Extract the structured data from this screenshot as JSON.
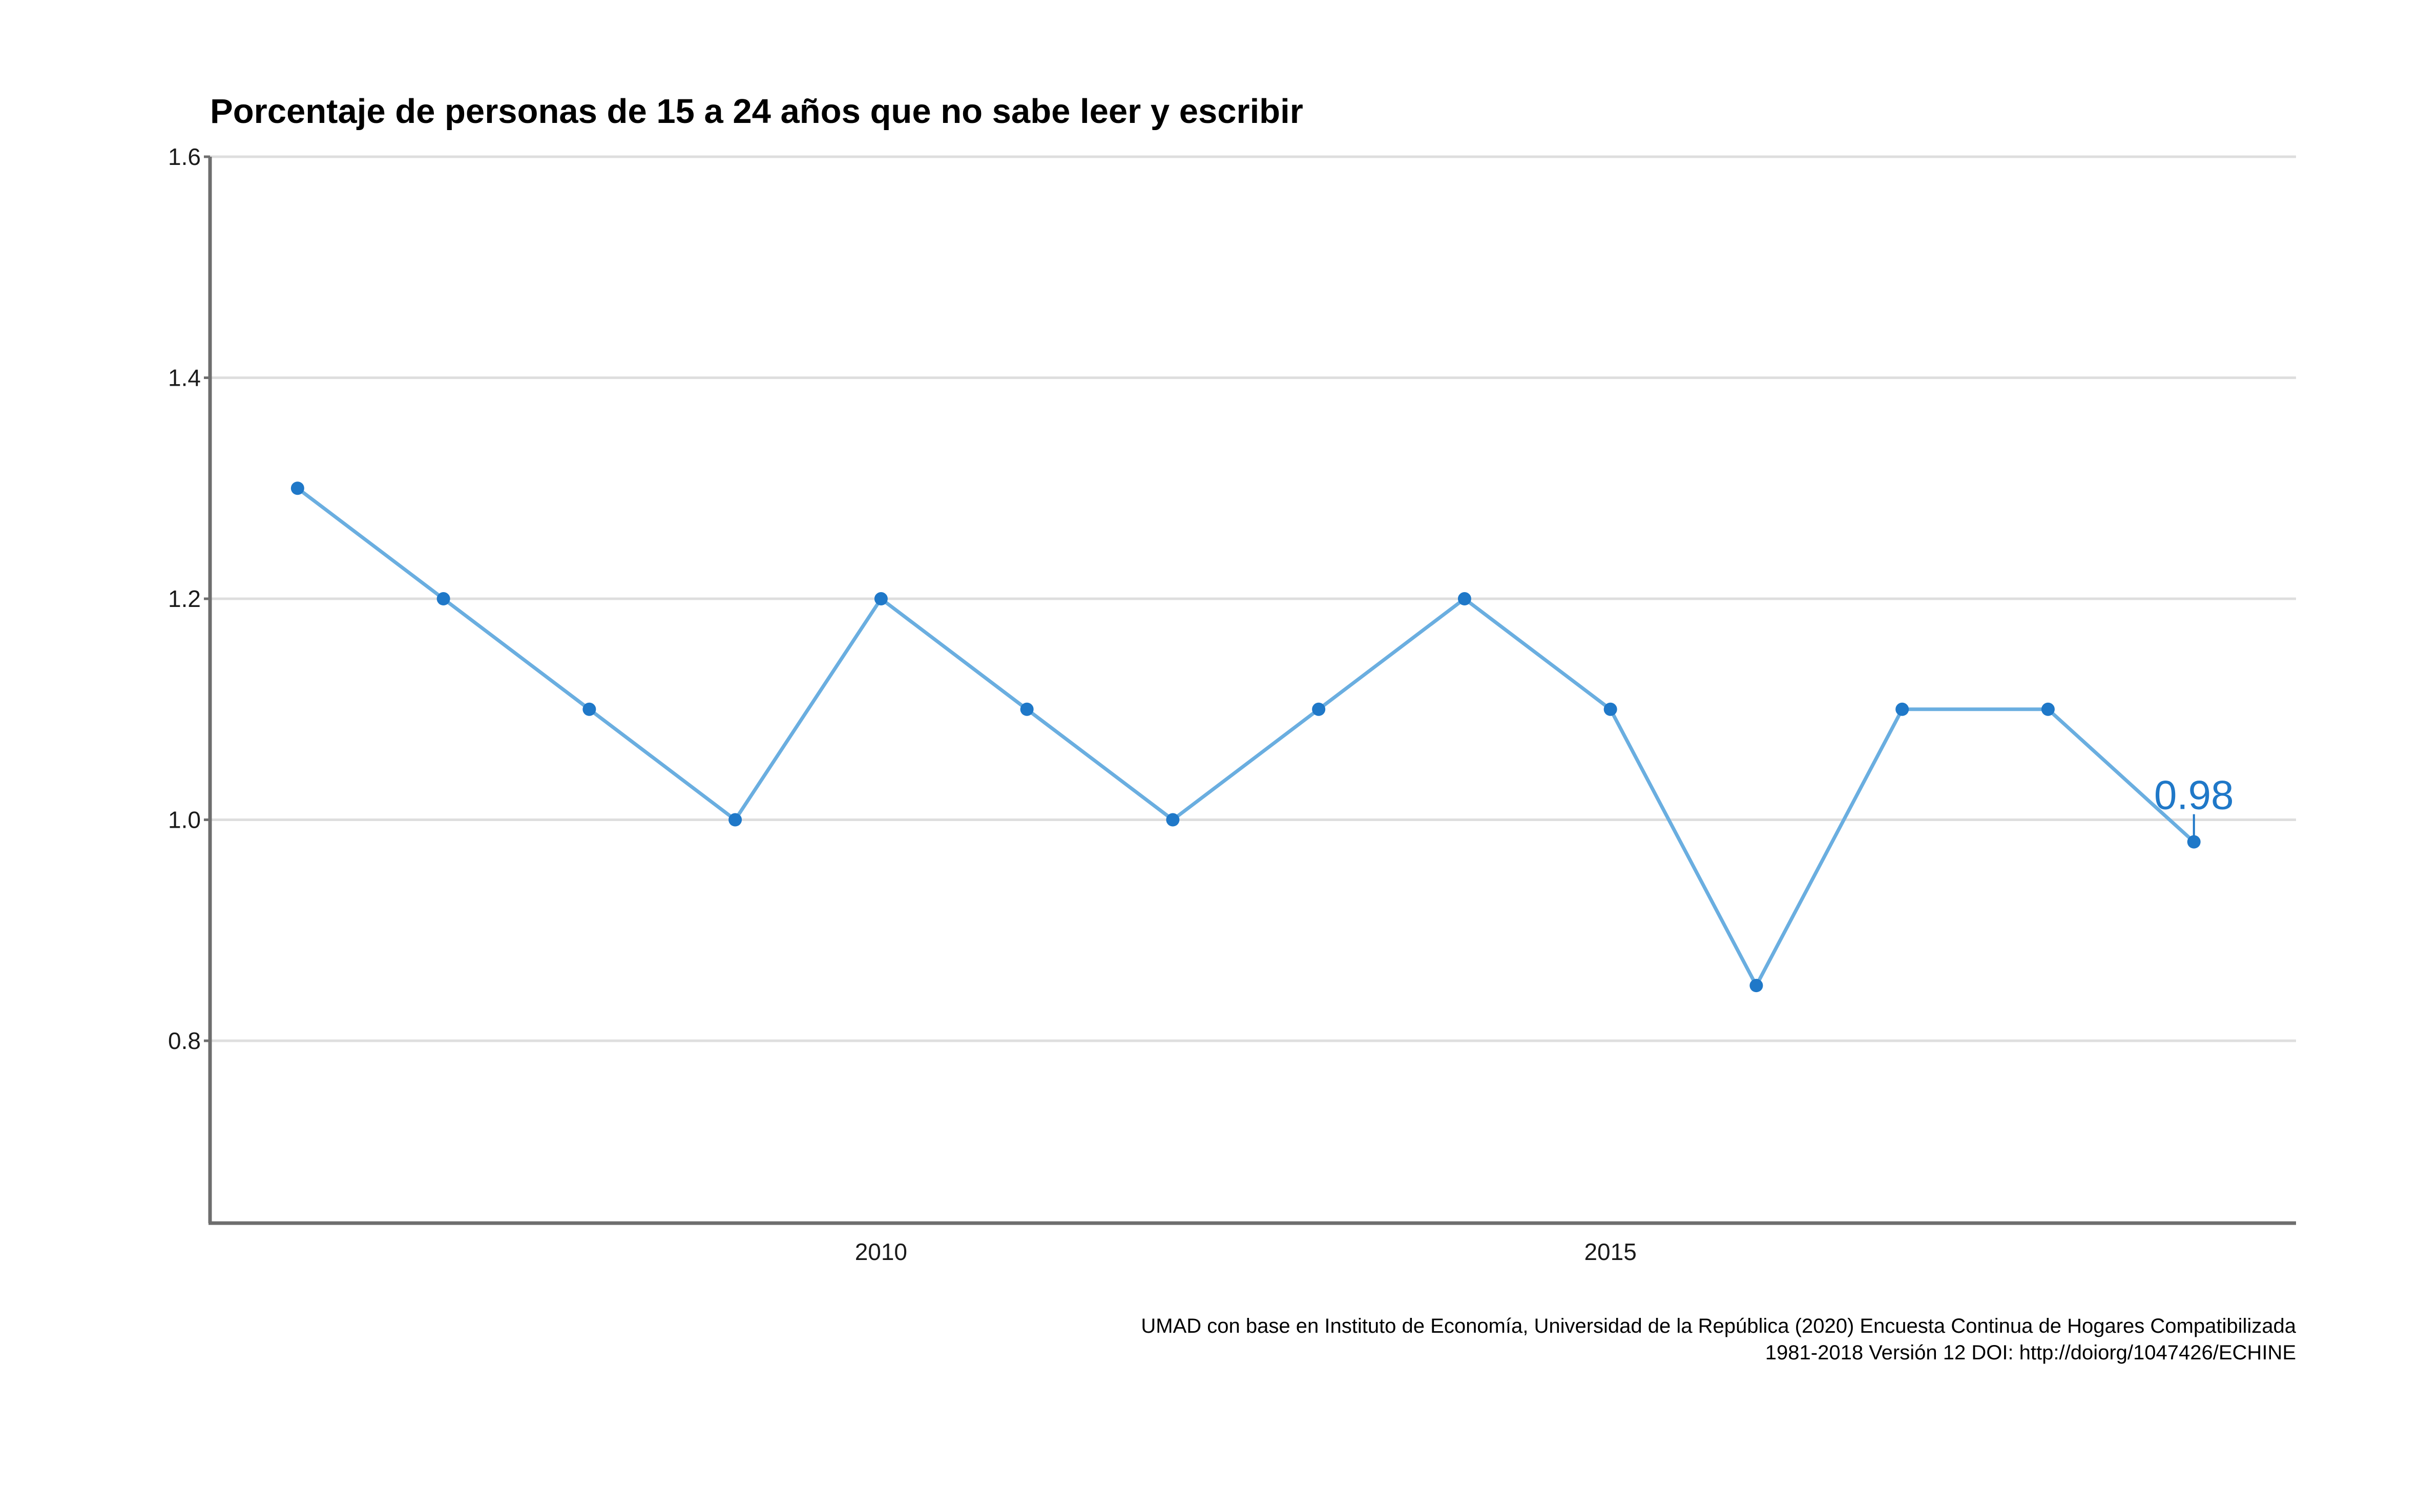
{
  "title": "Porcentaje de personas de 15 a 24 años que no sabe leer y escribir",
  "caption": {
    "line1": "UMAD con base en Instituto de Economía, Universidad de la República (2020) Encuesta Continua de Hogares Compatibilizada",
    "line2": "1981-2018 Versión 12 DOI: http://doiorg/1047426/ECHINE"
  },
  "colors": {
    "line": "#6aaee0",
    "point": "#1f78c8",
    "label": "#1f78c8",
    "grid": "#dedede",
    "axis": "#6e6e6e"
  },
  "chart_data": {
    "type": "line",
    "title": "Porcentaje de personas de 15 a 24 años que no sabe leer y escribir",
    "xlabel": "",
    "ylabel": "",
    "x": [
      2006,
      2007,
      2008,
      2009,
      2010,
      2011,
      2012,
      2013,
      2014,
      2015,
      2016,
      2017,
      2018,
      2019
    ],
    "series": [
      {
        "values": [
          1.3,
          1.2,
          1.1,
          1.0,
          1.2,
          1.1,
          1.0,
          1.1,
          1.2,
          1.1,
          0.85,
          1.1,
          1.1,
          0.98
        ]
      }
    ],
    "xlim": [
      2005.4,
      2019.7
    ],
    "ylim": [
      0.635,
      1.6
    ],
    "x_ticks": [
      2010,
      2015
    ],
    "x_tick_labels": [
      "2010",
      "2015"
    ],
    "y_ticks": [
      0.8,
      1.0,
      1.2,
      1.4,
      1.6
    ],
    "y_tick_labels": [
      "0.8",
      "1.0",
      "1.2",
      "1.4",
      "1.6"
    ],
    "grid": "horizontal",
    "annotations": [
      {
        "x": 2019,
        "y": 0.98,
        "text": "0.98"
      }
    ]
  }
}
